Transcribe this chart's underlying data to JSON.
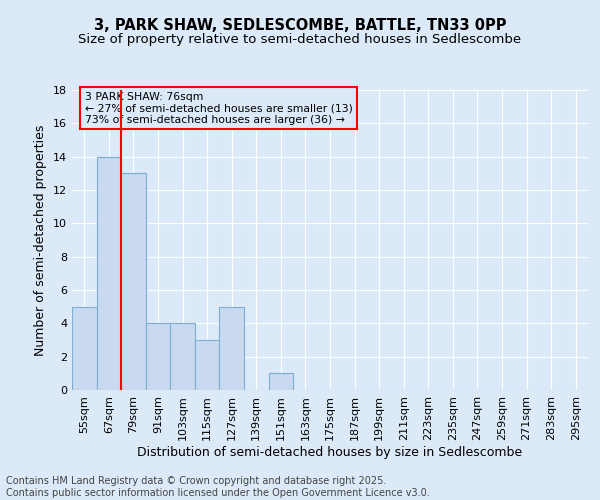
{
  "title": "3, PARK SHAW, SEDLESCOMBE, BATTLE, TN33 0PP",
  "subtitle": "Size of property relative to semi-detached houses in Sedlescombe",
  "xlabel": "Distribution of semi-detached houses by size in Sedlescombe",
  "ylabel": "Number of semi-detached properties",
  "categories": [
    "55sqm",
    "67sqm",
    "79sqm",
    "91sqm",
    "103sqm",
    "115sqm",
    "127sqm",
    "139sqm",
    "151sqm",
    "163sqm",
    "175sqm",
    "187sqm",
    "199sqm",
    "211sqm",
    "223sqm",
    "235sqm",
    "247sqm",
    "259sqm",
    "271sqm",
    "283sqm",
    "295sqm"
  ],
  "values": [
    5,
    14,
    13,
    4,
    4,
    3,
    5,
    0,
    1,
    0,
    0,
    0,
    0,
    0,
    0,
    0,
    0,
    0,
    0,
    0,
    0
  ],
  "bar_color": "#c9d9f0",
  "bar_edge_color": "#7bafd4",
  "background_color": "#dce9f8",
  "grid_color": "#ffffff",
  "annotation_text": "3 PARK SHAW: 76sqm\n← 27% of semi-detached houses are smaller (13)\n73% of semi-detached houses are larger (36) →",
  "vline_position": 1.5,
  "ylim": [
    0,
    18
  ],
  "yticks": [
    0,
    2,
    4,
    6,
    8,
    10,
    12,
    14,
    16,
    18
  ],
  "footer": "Contains HM Land Registry data © Crown copyright and database right 2025.\nContains public sector information licensed under the Open Government Licence v3.0.",
  "title_fontsize": 10.5,
  "subtitle_fontsize": 9.5,
  "axis_label_fontsize": 9,
  "tick_fontsize": 8,
  "footer_fontsize": 7
}
